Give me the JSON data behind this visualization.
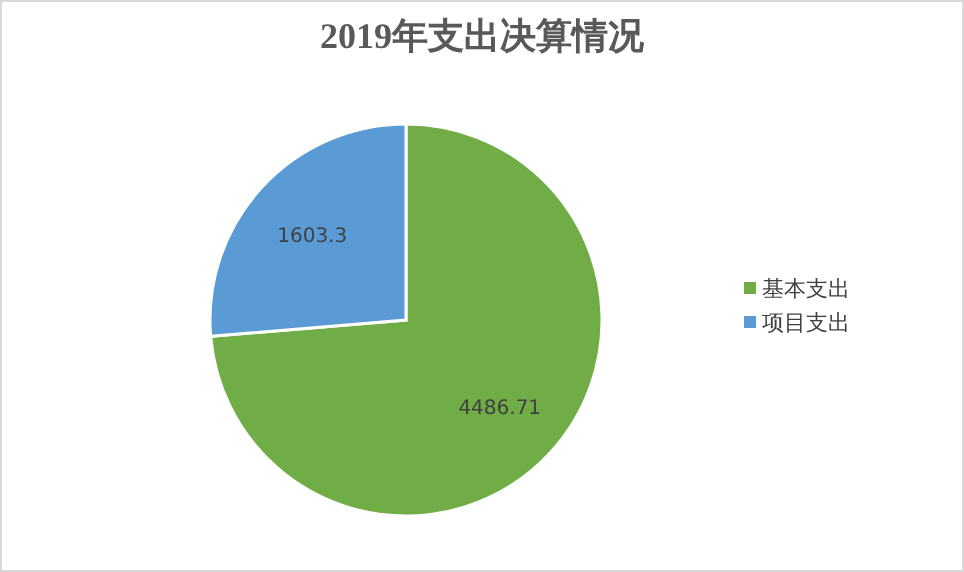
{
  "chart_data": {
    "type": "pie",
    "title": "2019年支出决算情况",
    "categories": [
      "基本支出",
      "项目支出"
    ],
    "values": [
      4486.71,
      1603.3
    ],
    "colors": [
      "#70ad47",
      "#5b9bd5"
    ],
    "data_labels": true,
    "legend": "right"
  }
}
